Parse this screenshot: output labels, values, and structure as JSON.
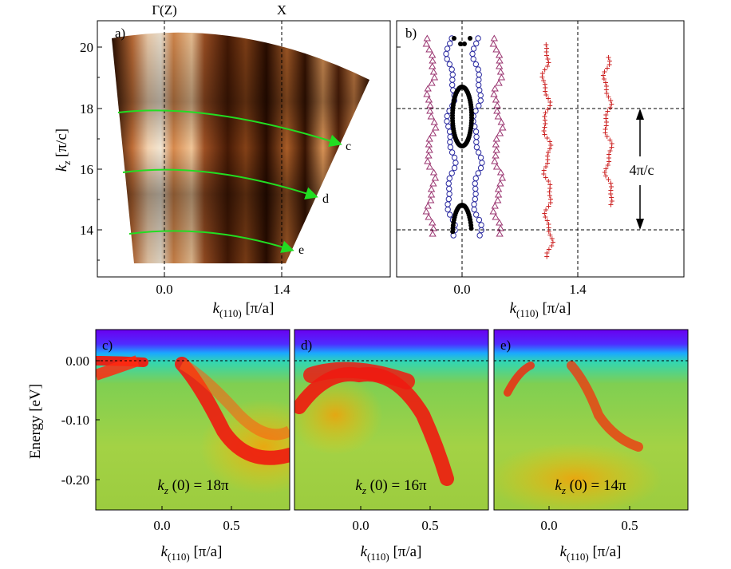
{
  "panels": {
    "a": {
      "label": "a)",
      "top_labels": {
        "gamma": "Γ(Z)",
        "x": "X"
      },
      "xticks": [
        "0.0",
        "1.4"
      ],
      "yticks": [
        "20",
        "18",
        "16",
        "14"
      ],
      "xlabel": {
        "main": "k",
        "sub": "(110)",
        "unit": " [π/a]"
      },
      "ylabel": {
        "main": "k",
        "sub": "z",
        "unit": " [π/c]"
      },
      "cut_labels": [
        "c",
        "d",
        "e"
      ],
      "cuts_kz": [
        18,
        16,
        14
      ]
    },
    "b": {
      "label": "b)",
      "xticks": [
        "0.0",
        "1.4"
      ],
      "xlabel": {
        "main": "k",
        "sub": "(110)",
        "unit": " [π/a]"
      },
      "period_label": "4π/c"
    },
    "c": {
      "label": "c)",
      "kz_note": {
        "pre": "k",
        "sub": "z",
        "post": " (0) = 18π"
      }
    },
    "d": {
      "label": "d)",
      "kz_note": {
        "pre": "k",
        "sub": "z",
        "post": " (0) = 16π"
      }
    },
    "e": {
      "label": "e)",
      "kz_note": {
        "pre": "k",
        "sub": "z",
        "post": " (0) = 14π"
      }
    }
  },
  "bottom_axes": {
    "xticks": [
      "0.0",
      "0.5"
    ],
    "yticks": [
      "0.00",
      "-0.10",
      "-0.20"
    ],
    "ylabel": "Energy [eV]",
    "xlabel": {
      "main": "k",
      "sub": "(110)",
      "unit": " [π/a]"
    }
  },
  "colors": {
    "cut_line": "#22dd22",
    "triangle": "#99336f",
    "circle": "#2a2aa0",
    "plus": "#cc2222",
    "dot": "#000000"
  }
}
